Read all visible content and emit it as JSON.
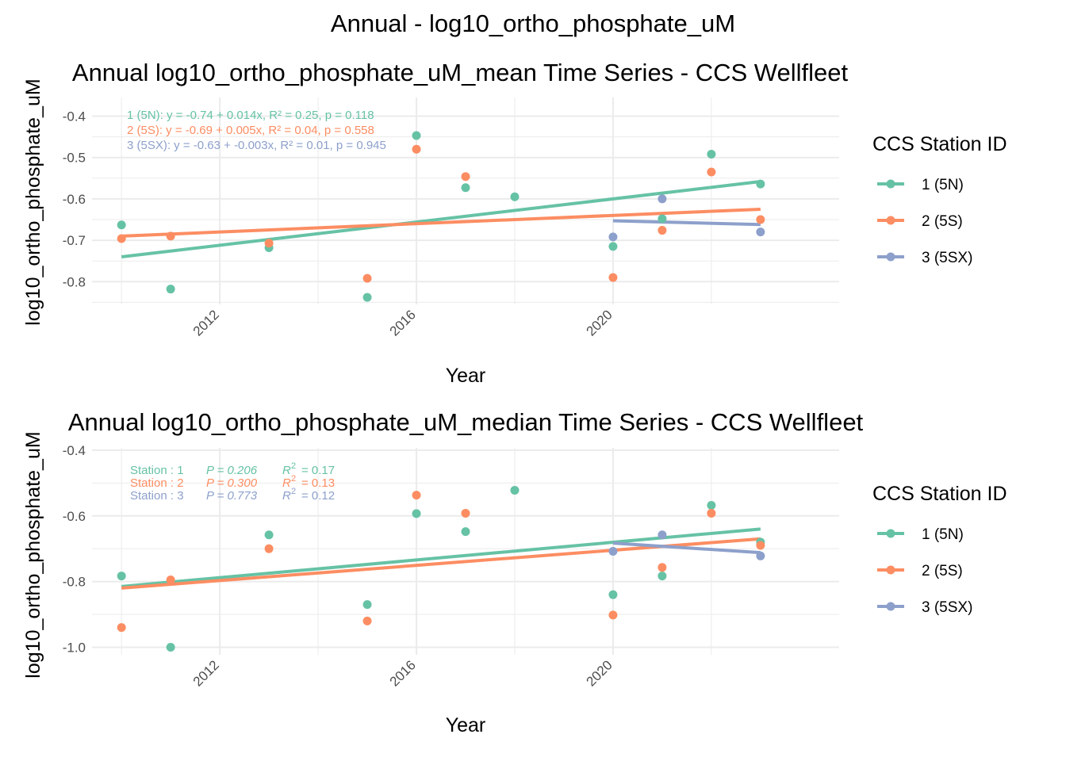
{
  "figure": {
    "title": "Annual - log10_ortho_phosphate_uM"
  },
  "colors": {
    "1 (5N)": "#66c2a5",
    "2 (5S)": "#fc8d62",
    "3 (5SX)": "#8da0cb"
  },
  "legend": {
    "title": "CCS Station ID",
    "placement": "right",
    "items": [
      "1 (5N)",
      "2 (5S)",
      "3 (5SX)"
    ]
  },
  "chart_data": [
    {
      "type": "scatter",
      "title": "Annual log10_ortho_phosphate_uM_mean Time Series - CCS Wellfleet",
      "xlabel": "Year",
      "ylabel": "log10_ortho_phosphate_uM",
      "xlim": [
        2009.4,
        2024.6
      ],
      "ylim": [
        -0.855,
        -0.355
      ],
      "x_ticks": [
        2012,
        2016,
        2020
      ],
      "x_tick_labels": [
        "2012",
        "2016",
        "2020"
      ],
      "y_ticks": [
        -0.8,
        -0.7,
        -0.6,
        -0.5,
        -0.4
      ],
      "y_tick_labels": [
        "-0.8",
        "-0.7",
        "-0.6",
        "-0.5",
        "-0.4"
      ],
      "grid": true,
      "annotations": [
        {
          "series": "1 (5N)",
          "text": "1 (5N):  y = -0.74 + 0.014x,  R² = 0.25, p = 0.118"
        },
        {
          "series": "2 (5S)",
          "text": "2 (5S):  y = -0.69 + 0.005x,  R² = 0.04, p = 0.558"
        },
        {
          "series": "3 (5SX)",
          "text": "3 (5SX):  y = -0.63 + -0.003x,  R² = 0.01, p = 0.945"
        }
      ],
      "series": [
        {
          "name": "1 (5N)",
          "x": [
            2010,
            2011,
            2013,
            2015,
            2016,
            2017,
            2018,
            2020,
            2021,
            2022,
            2023
          ],
          "y": [
            -0.663,
            -0.818,
            -0.718,
            -0.838,
            -0.447,
            -0.573,
            -0.595,
            -0.715,
            -0.648,
            -0.492,
            -0.564
          ],
          "trend": {
            "x": [
              2010,
              2023
            ],
            "y": [
              -0.74,
              -0.558
            ]
          }
        },
        {
          "name": "2 (5S)",
          "x": [
            2010,
            2011,
            2013,
            2015,
            2016,
            2017,
            2020,
            2021,
            2022,
            2023
          ],
          "y": [
            -0.696,
            -0.69,
            -0.707,
            -0.792,
            -0.48,
            -0.546,
            -0.79,
            -0.676,
            -0.535,
            -0.65
          ],
          "trend": {
            "x": [
              2010,
              2023
            ],
            "y": [
              -0.69,
              -0.625
            ]
          }
        },
        {
          "name": "3 (5SX)",
          "x": [
            2020,
            2021,
            2023
          ],
          "y": [
            -0.692,
            -0.6,
            -0.68
          ],
          "trend": {
            "x": [
              2020,
              2023
            ],
            "y": [
              -0.653,
              -0.662
            ]
          }
        }
      ]
    },
    {
      "type": "scatter",
      "title": "Annual log10_ortho_phosphate_uM_median Time Series - CCS Wellfleet",
      "xlabel": "Year",
      "ylabel": "log10_ortho_phosphate_uM",
      "xlim": [
        2009.4,
        2024.6
      ],
      "ylim": [
        -1.023,
        -0.393
      ],
      "x_ticks": [
        2012,
        2016,
        2020
      ],
      "x_tick_labels": [
        "2012",
        "2016",
        "2020"
      ],
      "y_ticks": [
        -1.0,
        -0.8,
        -0.6,
        -0.4
      ],
      "y_tick_labels": [
        "-1.0",
        "-0.8",
        "-0.6",
        "-0.4"
      ],
      "grid": true,
      "annotations": [
        {
          "series": "1 (5N)",
          "station": "Station : 1",
          "p": "P = 0.206",
          "r2": "= 0.17"
        },
        {
          "series": "2 (5S)",
          "station": "Station : 2",
          "p": "P = 0.300",
          "r2": "= 0.13"
        },
        {
          "series": "3 (5SX)",
          "station": "Station : 3",
          "p": "P = 0.773",
          "r2": "= 0.12"
        }
      ],
      "series": [
        {
          "name": "1 (5N)",
          "x": [
            2010,
            2011,
            2013,
            2015,
            2016,
            2017,
            2018,
            2020,
            2021,
            2022,
            2023
          ],
          "y": [
            -0.783,
            -1.0,
            -0.658,
            -0.87,
            -0.593,
            -0.648,
            -0.522,
            -0.84,
            -0.783,
            -0.568,
            -0.68
          ],
          "trend": {
            "x": [
              2010,
              2023
            ],
            "y": [
              -0.815,
              -0.64
            ]
          }
        },
        {
          "name": "2 (5S)",
          "x": [
            2010,
            2011,
            2013,
            2015,
            2016,
            2017,
            2020,
            2021,
            2022,
            2023
          ],
          "y": [
            -0.94,
            -0.795,
            -0.7,
            -0.92,
            -0.537,
            -0.592,
            -0.902,
            -0.757,
            -0.592,
            -0.69
          ],
          "trend": {
            "x": [
              2010,
              2023
            ],
            "y": [
              -0.82,
              -0.67
            ]
          }
        },
        {
          "name": "3 (5SX)",
          "x": [
            2020,
            2021,
            2023
          ],
          "y": [
            -0.708,
            -0.658,
            -0.722
          ],
          "trend": {
            "x": [
              2020,
              2023
            ],
            "y": [
              -0.683,
              -0.712
            ]
          }
        }
      ]
    }
  ]
}
